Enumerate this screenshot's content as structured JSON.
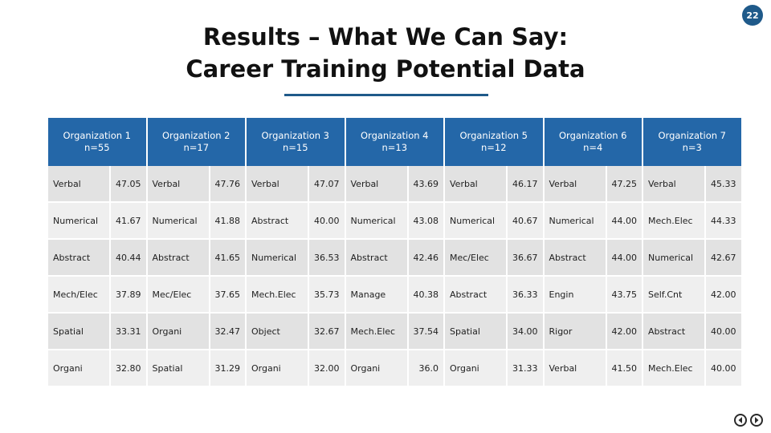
{
  "page_number": "22",
  "title": {
    "line1": "Results – What We Can Say:",
    "line2": "Career Training Potential Data"
  },
  "table": {
    "headers": [
      {
        "name": "Organization 1",
        "n": "n=55"
      },
      {
        "name": "Organization 2",
        "n": "n=17"
      },
      {
        "name": "Organization 3",
        "n": "n=15"
      },
      {
        "name": "Organization 4",
        "n": "n=13"
      },
      {
        "name": "Organization 5",
        "n": "n=12"
      },
      {
        "name": "Organization 6",
        "n": "n=4"
      },
      {
        "name": "Organization 7",
        "n": "n=3"
      }
    ],
    "rows": [
      [
        [
          "Verbal",
          "47.05"
        ],
        [
          "Verbal",
          "47.76"
        ],
        [
          "Verbal",
          "47.07"
        ],
        [
          "Verbal",
          "43.69"
        ],
        [
          "Verbal",
          "46.17"
        ],
        [
          "Verbal",
          "47.25"
        ],
        [
          "Verbal",
          "45.33"
        ]
      ],
      [
        [
          "Numerical",
          "41.67"
        ],
        [
          "Numerical",
          "41.88"
        ],
        [
          "Abstract",
          "40.00"
        ],
        [
          "Numerical",
          "43.08"
        ],
        [
          "Numerical",
          "40.67"
        ],
        [
          "Numerical",
          "44.00"
        ],
        [
          "Mech.Elec",
          "44.33"
        ]
      ],
      [
        [
          "Abstract",
          "40.44"
        ],
        [
          "Abstract",
          "41.65"
        ],
        [
          "Numerical",
          "36.53"
        ],
        [
          "Abstract",
          "42.46"
        ],
        [
          "Mec/Elec",
          "36.67"
        ],
        [
          "Abstract",
          "44.00"
        ],
        [
          "Numerical",
          "42.67"
        ]
      ],
      [
        [
          "Mech/Elec",
          "37.89"
        ],
        [
          "Mec/Elec",
          "37.65"
        ],
        [
          "Mech.Elec",
          "35.73"
        ],
        [
          "Manage",
          "40.38"
        ],
        [
          "Abstract",
          "36.33"
        ],
        [
          "Engin",
          "43.75"
        ],
        [
          "Self.Cnt",
          "42.00"
        ]
      ],
      [
        [
          "Spatial",
          "33.31"
        ],
        [
          "Organi",
          "32.47"
        ],
        [
          "Object",
          "32.67"
        ],
        [
          "Mech.Elec",
          "37.54"
        ],
        [
          "Spatial",
          "34.00"
        ],
        [
          "Rigor",
          "42.00"
        ],
        [
          "Abstract",
          "40.00"
        ]
      ],
      [
        [
          "Organi",
          "32.80"
        ],
        [
          "Spatial",
          "31.29"
        ],
        [
          "Organi",
          "32.00"
        ],
        [
          "Organi",
          "36.0"
        ],
        [
          "Organi",
          "31.33"
        ],
        [
          "Verbal",
          "41.50"
        ],
        [
          "Mech.Elec",
          "40.00"
        ]
      ]
    ]
  },
  "nav": {
    "prev_icon": "chevron-left-icon",
    "next_icon": "chevron-right-icon"
  },
  "colors": {
    "header_bg": "#2467a8",
    "accent": "#1f5a8a"
  }
}
